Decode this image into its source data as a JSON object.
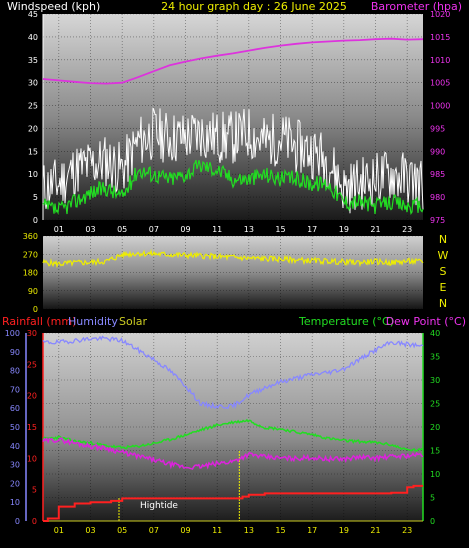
{
  "header": {
    "windspeed_label": "Windspeed (kph)",
    "title": "24 hour graph day : 26 June 2025",
    "barometer_label": "Barometer (hpa)"
  },
  "mid_header": {
    "rainfall_label": "Rainfall (mm)",
    "humidity_label": "Humidity",
    "solar_label": "Solar",
    "temperature_label": "Temperature (°C)",
    "dewpoint_label": "Dew Point (°C)"
  },
  "annotation": {
    "hightide_label": "Hightide"
  },
  "colors": {
    "windspeed": "#ffffff",
    "gust": "#22dd22",
    "barometer": "#dd33dd",
    "direction": "#eeee00",
    "rainfall": "#ff2020",
    "humidity": "#8888ff",
    "solar": "#cccc22",
    "temperature": "#22dd22",
    "dewpoint": "#dd22dd"
  },
  "chart_data": [
    {
      "type": "line",
      "title": "24 hour graph day : 26 June 2025",
      "x_ticks": [
        "01",
        "03",
        "05",
        "07",
        "09",
        "11",
        "13",
        "15",
        "17",
        "19",
        "21",
        "23"
      ],
      "xlim": [
        0,
        24
      ],
      "y_left_label": "Windspeed (kph)",
      "y_left_ticks": [
        "0",
        "5",
        "10",
        "15",
        "20",
        "25",
        "30",
        "35",
        "40",
        "45"
      ],
      "ylim_left": [
        0,
        45
      ],
      "y_right_label": "Barometer (hpa)",
      "y_right_ticks": [
        "975",
        "980",
        "985",
        "990",
        "995",
        "1000",
        "1005",
        "1010",
        "1015",
        "1020"
      ],
      "ylim_right": [
        975,
        1020
      ],
      "grid": true,
      "series": [
        {
          "name": "Windspeed (kph)",
          "axis": "left",
          "color": "#ffffff",
          "x": [
            0,
            1,
            2,
            3,
            4,
            5,
            6,
            7,
            8,
            9,
            10,
            11,
            12,
            13,
            14,
            15,
            16,
            17,
            18,
            19,
            20,
            21,
            22,
            23,
            24
          ],
          "y": [
            7,
            8,
            11,
            12,
            13,
            11,
            17,
            19,
            18,
            18,
            19,
            18,
            18,
            19,
            17,
            18,
            16,
            15,
            13,
            7,
            8,
            9,
            10,
            9,
            8
          ]
        },
        {
          "name": "Windspeed gust",
          "axis": "left",
          "color": "#22dd22",
          "x": [
            0,
            1,
            2,
            3,
            4,
            5,
            6,
            7,
            8,
            9,
            10,
            11,
            12,
            13,
            14,
            15,
            16,
            17,
            18,
            19,
            20,
            21,
            22,
            23,
            24
          ],
          "y": [
            3,
            2,
            4,
            6,
            7,
            5,
            11,
            10,
            9,
            10,
            12,
            11,
            9,
            9,
            10,
            9,
            9,
            8,
            8,
            4,
            4,
            3,
            4,
            3,
            3
          ]
        },
        {
          "name": "Barometer (hpa)",
          "axis": "right",
          "color": "#dd33dd",
          "x": [
            0,
            1,
            2,
            3,
            4,
            5,
            6,
            7,
            8,
            9,
            10,
            11,
            12,
            13,
            14,
            15,
            16,
            17,
            18,
            19,
            20,
            21,
            22,
            23,
            24
          ],
          "y": [
            1005.8,
            1005.5,
            1005.2,
            1004.9,
            1004.8,
            1005.0,
            1006.2,
            1007.5,
            1008.8,
            1009.6,
            1010.3,
            1010.9,
            1011.4,
            1012.0,
            1012.6,
            1013.1,
            1013.5,
            1013.8,
            1014.0,
            1014.2,
            1014.3,
            1014.5,
            1014.6,
            1014.4,
            1014.5
          ]
        }
      ]
    },
    {
      "type": "line",
      "x_ticks": [
        "01",
        "03",
        "05",
        "07",
        "09",
        "11",
        "13",
        "15",
        "17",
        "19",
        "21",
        "23"
      ],
      "xlim": [
        0,
        24
      ],
      "y_ticks": [
        "0",
        "90",
        "180",
        "270",
        "360"
      ],
      "ylim": [
        0,
        360
      ],
      "y_right_ticks": [
        "N",
        "W",
        "S",
        "E",
        "N"
      ],
      "grid": true,
      "series": [
        {
          "name": "Wind direction",
          "color": "#eeee00",
          "x": [
            0,
            1,
            2,
            3,
            4,
            5,
            6,
            7,
            8,
            9,
            10,
            11,
            12,
            13,
            14,
            15,
            16,
            17,
            18,
            19,
            20,
            21,
            22,
            23,
            24
          ],
          "y": [
            230,
            222,
            228,
            230,
            235,
            268,
            275,
            272,
            268,
            265,
            262,
            258,
            255,
            250,
            248,
            246,
            242,
            238,
            236,
            232,
            230,
            234,
            228,
            236,
            232
          ]
        }
      ]
    },
    {
      "type": "line",
      "x_ticks": [
        "01",
        "03",
        "05",
        "07",
        "09",
        "11",
        "13",
        "15",
        "17",
        "19",
        "21",
        "23"
      ],
      "xlim": [
        0,
        24
      ],
      "y_humidity_ticks": [
        "0",
        "10",
        "20",
        "30",
        "40",
        "50",
        "60",
        "70",
        "80",
        "90",
        "100"
      ],
      "ylim_humidity": [
        0,
        100
      ],
      "y_rain_ticks": [
        "0",
        "5",
        "10",
        "15",
        "20",
        "25",
        "30"
      ],
      "ylim_rain": [
        0,
        30
      ],
      "y_right_ticks": [
        "0",
        "5",
        "10",
        "15",
        "20",
        "25",
        "30",
        "35",
        "40"
      ],
      "ylim_temperature": [
        0,
        40
      ],
      "annotations": [
        {
          "label": "Hightide",
          "x": 4.8
        },
        {
          "x": 12.4
        }
      ],
      "grid": true,
      "series": [
        {
          "name": "Rainfall (mm)",
          "color": "#ff2020",
          "x": [
            0,
            0.3,
            1,
            2,
            3,
            4,
            4.3,
            5,
            6,
            7,
            8,
            9,
            10,
            11,
            12,
            12.6,
            13,
            14,
            15,
            16,
            17,
            18,
            19,
            20,
            21,
            22,
            23,
            23.4,
            24
          ],
          "y": [
            0,
            0.4,
            2.3,
            2.8,
            3.0,
            3.0,
            3.2,
            3.6,
            3.6,
            3.6,
            3.6,
            3.6,
            3.6,
            3.6,
            3.6,
            3.9,
            4.2,
            4.4,
            4.4,
            4.4,
            4.4,
            4.4,
            4.4,
            4.4,
            4.4,
            4.5,
            5.4,
            5.6,
            5.6
          ]
        },
        {
          "name": "Humidity",
          "color": "#8888ff",
          "x": [
            0,
            1,
            2,
            3,
            4,
            5,
            6,
            7,
            8,
            9,
            10,
            11,
            12,
            13,
            14,
            15,
            16,
            17,
            18,
            19,
            20,
            21,
            22,
            23,
            24
          ],
          "y": [
            95,
            95,
            96,
            97,
            97,
            96,
            91,
            86,
            80,
            72,
            62,
            61,
            61,
            67,
            71,
            74,
            76,
            78,
            79,
            81,
            86,
            91,
            95,
            94,
            93
          ]
        },
        {
          "name": "Solar",
          "color": "#cccc22",
          "x": [
            0,
            24
          ],
          "y": [
            0,
            0
          ]
        },
        {
          "name": "Temperature (°C)",
          "color": "#22dd22",
          "x": [
            0,
            1,
            2,
            3,
            4,
            5,
            6,
            7,
            8,
            9,
            10,
            11,
            12,
            13,
            14,
            15,
            16,
            17,
            18,
            19,
            20,
            21,
            22,
            23,
            24
          ],
          "y": [
            17.5,
            17.8,
            17.0,
            16.6,
            16.0,
            15.6,
            15.9,
            16.5,
            17.3,
            18.3,
            19.4,
            20.4,
            21.0,
            21.4,
            19.9,
            19.6,
            18.9,
            18.4,
            17.6,
            17.1,
            16.9,
            16.7,
            16.2,
            15.1,
            15.1
          ]
        },
        {
          "name": "Dew Point (°C)",
          "color": "#dd22dd",
          "x": [
            0,
            1,
            2,
            3,
            4,
            5,
            6,
            7,
            8,
            9,
            10,
            11,
            12,
            13,
            14,
            15,
            16,
            17,
            18,
            19,
            20,
            21,
            22,
            23,
            24
          ],
          "y": [
            17.0,
            17.3,
            16.6,
            15.9,
            15.5,
            14.6,
            13.8,
            13.0,
            12.1,
            11.4,
            11.6,
            12.2,
            12.7,
            14.2,
            13.6,
            13.4,
            13.3,
            13.5,
            13.2,
            13.2,
            13.6,
            13.4,
            13.7,
            13.9,
            14.1
          ]
        }
      ]
    }
  ]
}
